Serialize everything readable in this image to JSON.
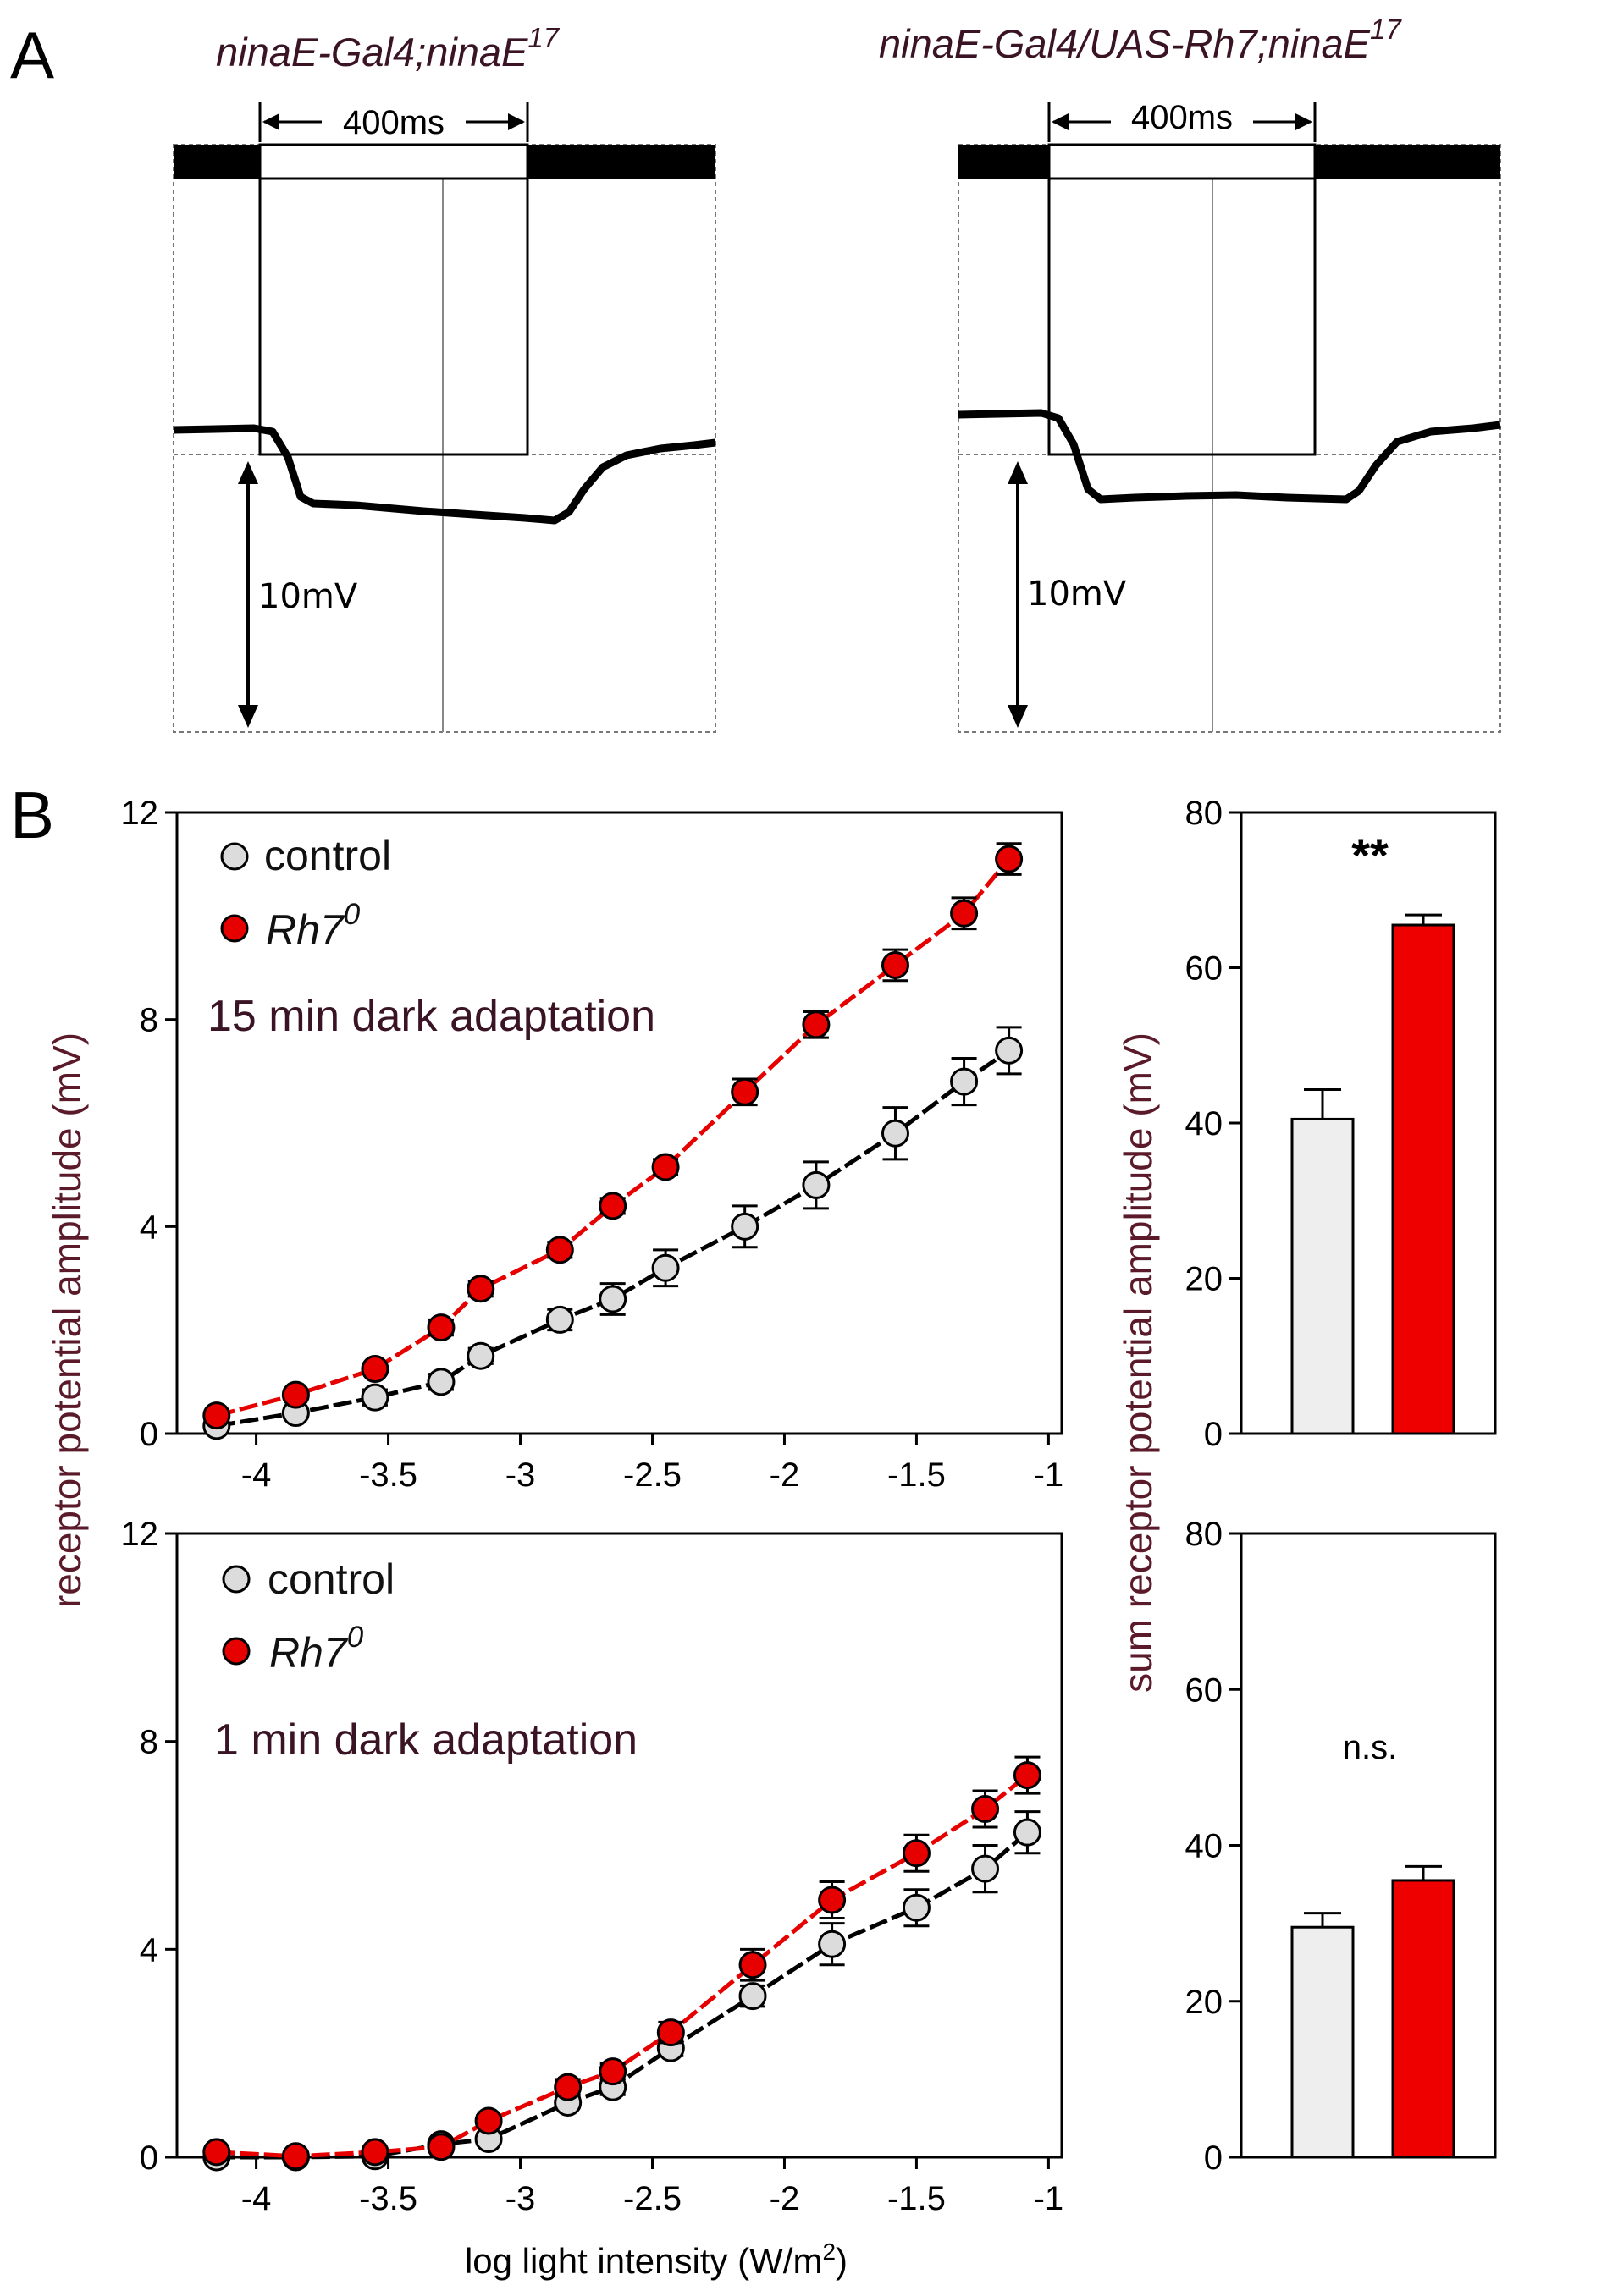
{
  "panel_a": {
    "letter": "A",
    "left": {
      "title_main": "ninaE-Gal4;ninaE",
      "title_sup": "17",
      "duration_label": "400ms",
      "scale_label": "10mV"
    },
    "right": {
      "title_main": "ninaE-Gal4/UAS-Rh7;ninaE",
      "title_sup": "17",
      "duration_label": "400ms",
      "scale_label": "10mV"
    }
  },
  "panel_b": {
    "letter": "B",
    "y_axis_title": "receptor potential amplitude (mV)",
    "bar_axis_title": "sum receptor potential amplitude (mV)",
    "x_axis_title_main": "log light intensity (W/m",
    "x_axis_title_sup": "2",
    "x_axis_title_end": ")",
    "legend": {
      "control_label": "control",
      "rh7_label": "Rh7",
      "rh7_sup": "0"
    },
    "top_condition": "15 min dark adaptation",
    "bottom_condition": "1 min dark adaptation",
    "top_significance": "**",
    "bottom_significance": "n.s."
  },
  "colors": {
    "control_fill": "#dcdcdc",
    "rh7_fill": "#e60000",
    "control_line": "#000000",
    "rh7_line": "#e60000",
    "bar_control": "#eeeeee",
    "bar_rh7": "#ee0000"
  },
  "chart_data": [
    {
      "id": "top-line",
      "type": "line",
      "title": "15 min dark adaptation",
      "xlabel": "log light intensity (W/m2)",
      "ylabel": "receptor potential amplitude (mV)",
      "xlim": [
        -4.3,
        -0.95
      ],
      "ylim": [
        0,
        12
      ],
      "x_ticks": [
        -4,
        -3.5,
        -3,
        -2.5,
        -2,
        -1.5,
        -1
      ],
      "x_tick_labels": [
        "-4",
        "-3.5",
        "-3",
        "-2.5",
        "-2",
        "-1.5",
        "-1"
      ],
      "y_ticks": [
        0,
        4,
        8,
        12
      ],
      "y_tick_labels": [
        "0",
        "4",
        "8",
        "12"
      ],
      "series": [
        {
          "name": "control",
          "x": [
            -4.15,
            -3.85,
            -3.55,
            -3.3,
            -3.15,
            -2.85,
            -2.65,
            -2.45,
            -2.15,
            -1.88,
            -1.58,
            -1.32,
            -1.15
          ],
          "y": [
            0.15,
            0.4,
            0.7,
            1.0,
            1.5,
            2.2,
            2.6,
            3.2,
            4.0,
            4.8,
            5.8,
            6.8,
            7.4
          ],
          "err": [
            0.05,
            0.1,
            0.15,
            0.15,
            0.15,
            0.2,
            0.3,
            0.35,
            0.4,
            0.45,
            0.5,
            0.45,
            0.45
          ]
        },
        {
          "name": "Rh7 0",
          "x": [
            -4.15,
            -3.85,
            -3.55,
            -3.3,
            -3.15,
            -2.85,
            -2.65,
            -2.45,
            -2.15,
            -1.88,
            -1.58,
            -1.32,
            -1.15
          ],
          "y": [
            0.35,
            0.75,
            1.25,
            2.05,
            2.8,
            3.55,
            4.4,
            5.15,
            6.6,
            7.9,
            9.05,
            10.05,
            11.1
          ],
          "err": [
            0.05,
            0.1,
            0.1,
            0.15,
            0.15,
            0.15,
            0.15,
            0.15,
            0.25,
            0.25,
            0.3,
            0.3,
            0.3
          ]
        }
      ]
    },
    {
      "id": "bottom-line",
      "type": "line",
      "title": "1 min dark adaptation",
      "xlabel": "log light intensity (W/m2)",
      "ylabel": "receptor potential amplitude (mV)",
      "xlim": [
        -4.3,
        -0.95
      ],
      "ylim": [
        0,
        12
      ],
      "x_ticks": [
        -4,
        -3.5,
        -3,
        -2.5,
        -2,
        -1.5,
        -1
      ],
      "x_tick_labels": [
        "-4",
        "-3.5",
        "-3",
        "-2.5",
        "-2",
        "-1.5",
        "-1"
      ],
      "y_ticks": [
        0,
        4,
        8,
        12
      ],
      "y_tick_labels": [
        "0",
        "4",
        "8",
        "12"
      ],
      "series": [
        {
          "name": "control",
          "x": [
            -4.15,
            -3.85,
            -3.55,
            -3.3,
            -3.12,
            -2.82,
            -2.65,
            -2.43,
            -2.12,
            -1.82,
            -1.5,
            -1.24,
            -1.08
          ],
          "y": [
            0.0,
            0.0,
            0.02,
            0.25,
            0.35,
            1.05,
            1.35,
            2.1,
            3.1,
            4.1,
            4.8,
            5.55,
            6.25
          ],
          "err": [
            0.05,
            0.05,
            0.05,
            0.05,
            0.1,
            0.1,
            0.15,
            0.15,
            0.2,
            0.4,
            0.35,
            0.45,
            0.4
          ]
        },
        {
          "name": "Rh7 0",
          "x": [
            -4.15,
            -3.85,
            -3.55,
            -3.3,
            -3.12,
            -2.82,
            -2.65,
            -2.43,
            -2.12,
            -1.82,
            -1.5,
            -1.24,
            -1.08
          ],
          "y": [
            0.1,
            0.02,
            0.1,
            0.2,
            0.7,
            1.35,
            1.65,
            2.4,
            3.7,
            4.95,
            5.85,
            6.7,
            7.35
          ],
          "err": [
            0.05,
            0.05,
            0.05,
            0.05,
            0.1,
            0.15,
            0.15,
            0.2,
            0.3,
            0.35,
            0.35,
            0.35,
            0.35
          ]
        }
      ]
    },
    {
      "id": "top-bar",
      "type": "bar",
      "ylabel": "sum receptor potential amplitude (mV)",
      "ylim": [
        0,
        80
      ],
      "y_ticks": [
        0,
        20,
        40,
        60,
        80
      ],
      "y_tick_labels": [
        "0",
        "20",
        "40",
        "60",
        "80"
      ],
      "categories": [
        "control",
        "Rh7 0"
      ],
      "values": [
        40.5,
        65.5
      ],
      "err": [
        3.8,
        1.3
      ],
      "annotation": "**"
    },
    {
      "id": "bottom-bar",
      "type": "bar",
      "ylabel": "sum receptor potential amplitude (mV)",
      "ylim": [
        0,
        80
      ],
      "y_ticks": [
        0,
        20,
        40,
        60,
        80
      ],
      "y_tick_labels": [
        "0",
        "20",
        "40",
        "60",
        "80"
      ],
      "categories": [
        "control",
        "Rh7 0"
      ],
      "values": [
        29.5,
        35.5
      ],
      "err": [
        1.8,
        1.8
      ],
      "annotation": "n.s."
    }
  ]
}
